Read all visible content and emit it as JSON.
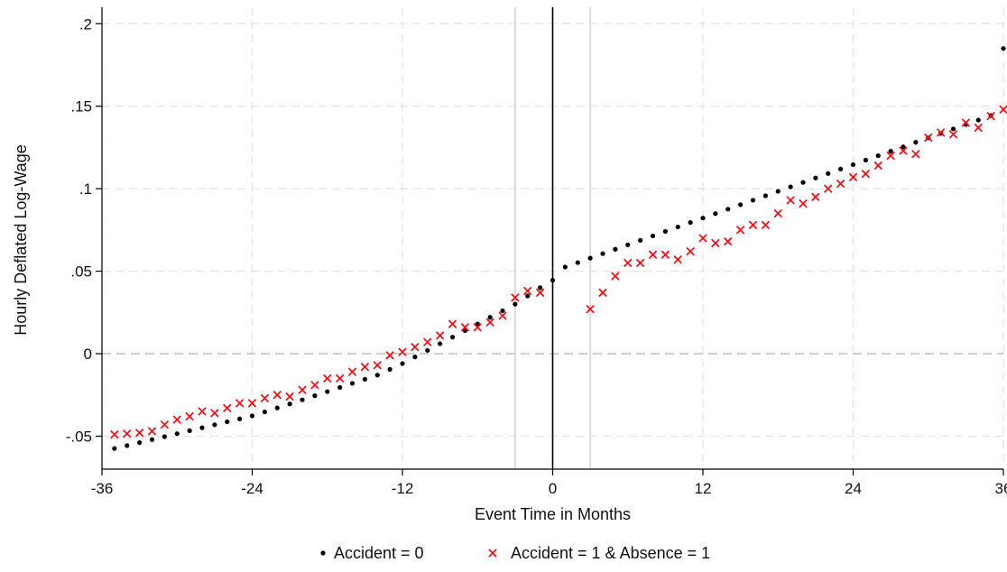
{
  "chart_data": {
    "type": "scatter",
    "xlabel": "Event Time in Months",
    "ylabel": "Hourly Deflated Log-Wage",
    "xlim": [
      -36,
      36
    ],
    "ylim": [
      -0.07,
      0.21
    ],
    "x_ticks": [
      -36,
      -24,
      -12,
      0,
      12,
      24,
      36
    ],
    "x_tick_labels": [
      "-36",
      "-24",
      "-12",
      "0",
      "12",
      "24",
      "36"
    ],
    "y_ticks": [
      -0.05,
      0,
      0.05,
      0.1,
      0.15,
      0.2
    ],
    "y_tick_labels": [
      "-.05",
      "0",
      ".05",
      ".1",
      ".15",
      ".2"
    ],
    "grid": true,
    "reference_lines": {
      "horizontal_dashed": 0,
      "vertical_solid": 0,
      "vertical_light": [
        -3,
        3
      ]
    },
    "legend_position": "bottom",
    "colors": {
      "series_0": "#000000",
      "series_1": "#e8141b",
      "grid": "#e2e2e2",
      "ref_light": "#d4d4d4"
    },
    "series": [
      {
        "name": "Accident = 0",
        "marker": "dot",
        "x": [
          -35,
          -34,
          -33,
          -32,
          -31,
          -30,
          -29,
          -28,
          -27,
          -26,
          -25,
          -24,
          -23,
          -22,
          -21,
          -20,
          -19,
          -18,
          -17,
          -16,
          -15,
          -14,
          -13,
          -12,
          -11,
          -10,
          -9,
          -8,
          -7,
          -6,
          -5,
          -4,
          -3,
          -2,
          -1,
          0,
          1,
          2,
          3,
          4,
          5,
          6,
          7,
          8,
          9,
          10,
          11,
          12,
          13,
          14,
          15,
          16,
          17,
          18,
          19,
          20,
          21,
          22,
          23,
          24,
          25,
          26,
          27,
          28,
          29,
          30,
          31,
          32,
          33,
          34,
          35,
          36
        ],
        "y": [
          -0.0575,
          -0.0557,
          -0.0539,
          -0.0521,
          -0.0503,
          -0.0485,
          -0.0467,
          -0.0449,
          -0.0431,
          -0.0413,
          -0.0395,
          -0.0377,
          -0.0353,
          -0.0329,
          -0.0305,
          -0.028,
          -0.0255,
          -0.023,
          -0.0205,
          -0.018,
          -0.0155,
          -0.013,
          -0.0095,
          -0.006,
          -0.002,
          0.002,
          0.006,
          0.01,
          0.014,
          0.018,
          0.022,
          0.026,
          0.03,
          0.035,
          0.04,
          0.0445,
          0.0525,
          0.0552,
          0.0579,
          0.0606,
          0.0633,
          0.066,
          0.0687,
          0.0714,
          0.0741,
          0.0768,
          0.0795,
          0.0822,
          0.0849,
          0.0876,
          0.0903,
          0.093,
          0.0957,
          0.0984,
          0.1011,
          0.1038,
          0.1065,
          0.1092,
          0.1119,
          0.1146,
          0.1173,
          0.12,
          0.1227,
          0.1254,
          0.1281,
          0.1308,
          0.1335,
          0.1362,
          0.1389,
          0.1416,
          0.1443,
          0.185
        ]
      },
      {
        "name": "Accident = 1 & Absence = 1",
        "marker": "x",
        "x": [
          -35,
          -34,
          -33,
          -32,
          -31,
          -30,
          -29,
          -28,
          -27,
          -26,
          -25,
          -24,
          -23,
          -22,
          -21,
          -20,
          -19,
          -18,
          -17,
          -16,
          -15,
          -14,
          -13,
          -12,
          -11,
          -10,
          -9,
          -8,
          -7,
          -6,
          -5,
          -4,
          -3,
          -2,
          -1,
          3,
          4,
          5,
          6,
          7,
          8,
          9,
          10,
          11,
          12,
          13,
          14,
          15,
          16,
          17,
          18,
          19,
          20,
          21,
          22,
          23,
          24,
          25,
          26,
          27,
          28,
          29,
          30,
          31,
          32,
          33,
          34,
          35,
          36
        ],
        "y": [
          -0.049,
          -0.0485,
          -0.048,
          -0.047,
          -0.043,
          -0.04,
          -0.038,
          -0.035,
          -0.036,
          -0.033,
          -0.03,
          -0.03,
          -0.027,
          -0.025,
          -0.026,
          -0.022,
          -0.019,
          -0.015,
          -0.015,
          -0.011,
          -0.008,
          -0.007,
          -0.001,
          0.001,
          0.004,
          0.007,
          0.011,
          0.018,
          0.016,
          0.016,
          0.019,
          0.023,
          0.034,
          0.038,
          0.037,
          0.027,
          0.037,
          0.047,
          0.055,
          0.055,
          0.06,
          0.06,
          0.057,
          0.062,
          0.07,
          0.067,
          0.068,
          0.075,
          0.078,
          0.078,
          0.085,
          0.093,
          0.091,
          0.095,
          0.1,
          0.103,
          0.107,
          0.109,
          0.114,
          0.12,
          0.123,
          0.121,
          0.131,
          0.134,
          0.133,
          0.14,
          0.137,
          0.144,
          0.148
        ]
      }
    ]
  }
}
